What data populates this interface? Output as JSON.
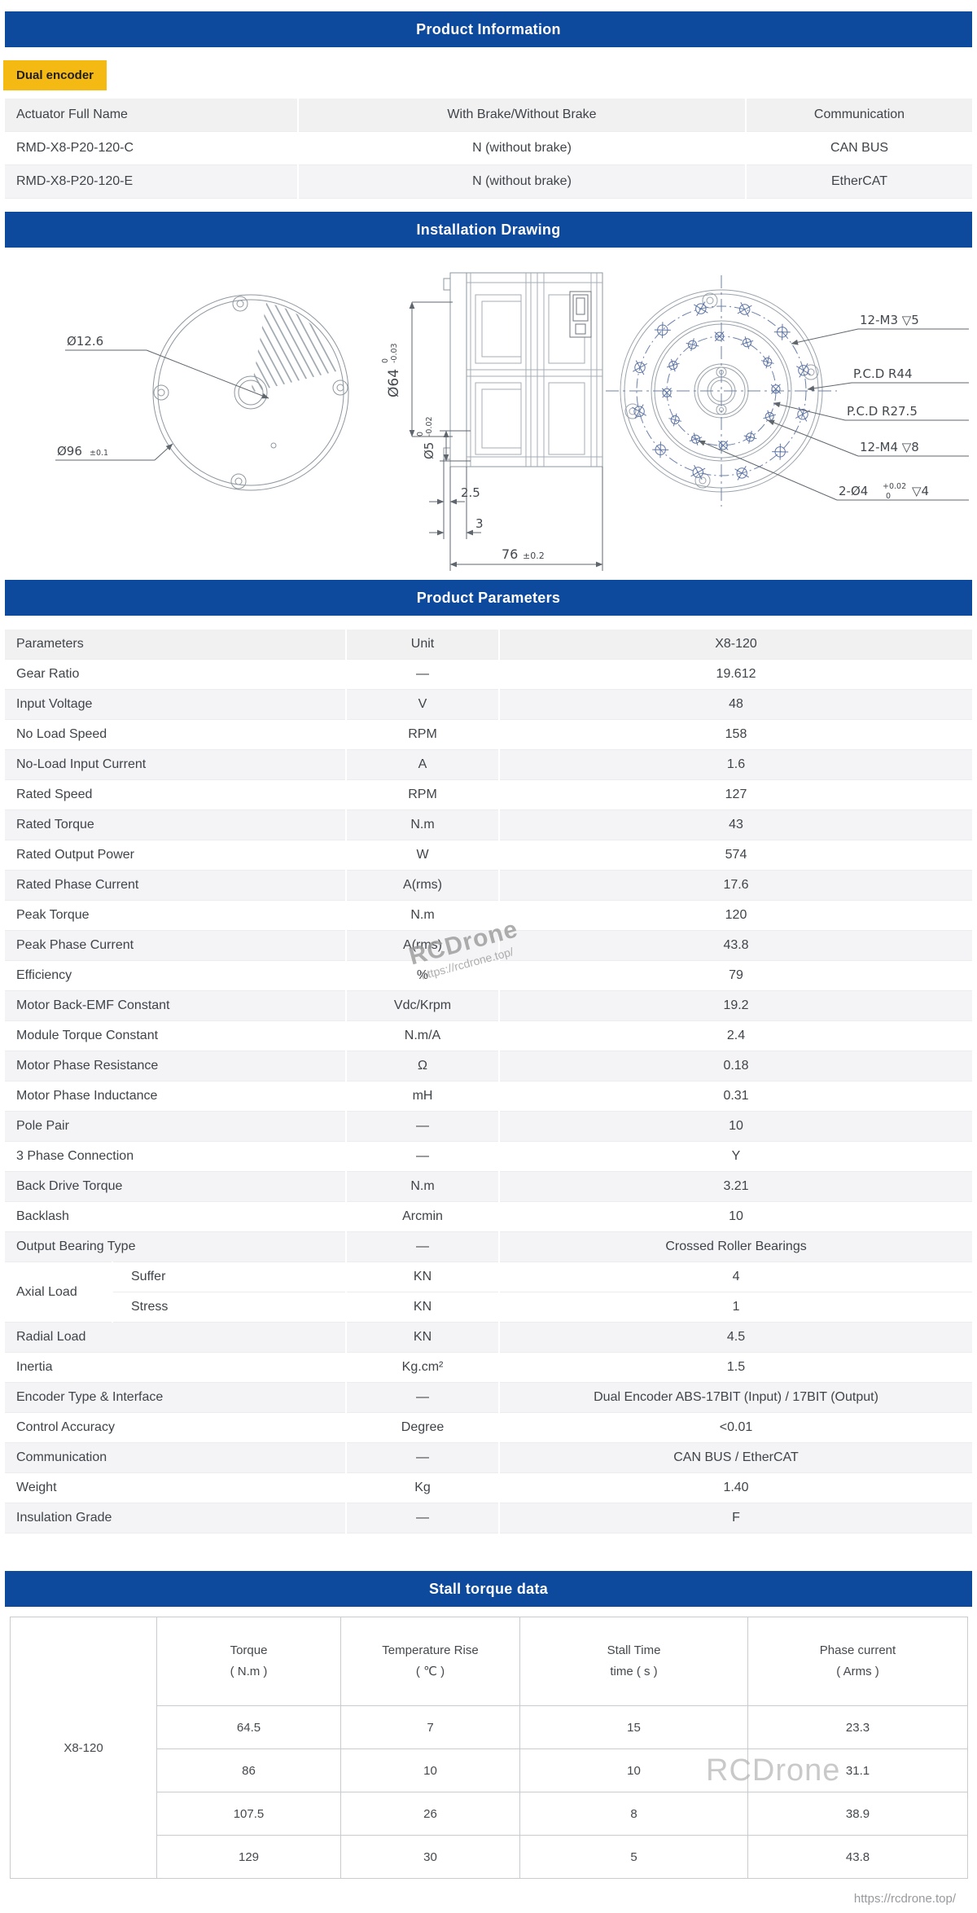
{
  "page": {
    "footer_url": "https://rcdrone.top/"
  },
  "watermark": {
    "name": "RCDrone",
    "url": "https://rcdrone.top/"
  },
  "product_info": {
    "title": "Product Information",
    "badge": "Dual encoder",
    "headers": [
      "Actuator Full Name",
      "With Brake/Without Brake",
      "Communication"
    ],
    "rows": [
      [
        "RMD-X8-P20-120-C",
        "N (without brake)",
        "CAN BUS"
      ],
      [
        "RMD-X8-P20-120-E",
        "N (without brake)",
        "EtherCAT"
      ]
    ]
  },
  "installation": {
    "title": "Installation Drawing",
    "labels": {
      "hub_dia": "Ø12.6",
      "outer_dia": "Ø96",
      "outer_tol": "±0.1",
      "dia64": "Ø64",
      "dia64_tol_hi": "0",
      "dia64_tol_lo": "-0.03",
      "dia5": "Ø5",
      "dia5_tol_hi": "0",
      "dia5_tol_lo": "-0.02",
      "dim_flange": "2.5",
      "dim_face": "3",
      "dim_length": "76",
      "dim_length_tol": "±0.2",
      "bolts_outer": "12-M3 ▽5",
      "pcd_outer": "P.C.D R44",
      "pcd_inner": "P.C.D R27.5",
      "bolts_inner": "12-M4 ▽8",
      "pins": "2-Ø4",
      "pins_tol_hi": "+0.02",
      "pins_tol_lo": "0",
      "pins_depth": "▽4"
    }
  },
  "parameters": {
    "title": "Product Parameters",
    "headers": [
      "Parameters",
      "Unit",
      "X8-120"
    ],
    "rows": [
      [
        "Gear Ratio",
        "—",
        "19.612"
      ],
      [
        "Input Voltage",
        "V",
        "48"
      ],
      [
        "No Load Speed",
        "RPM",
        "158"
      ],
      [
        "No-Load Input Current",
        "A",
        "1.6"
      ],
      [
        "Rated Speed",
        "RPM",
        "127"
      ],
      [
        "Rated Torque",
        "N.m",
        "43"
      ],
      [
        "Rated Output Power",
        "W",
        "574"
      ],
      [
        "Rated Phase Current",
        "A(rms)",
        "17.6"
      ],
      [
        "Peak Torque",
        "N.m",
        "120"
      ],
      [
        "Peak Phase Current",
        "A(rms)",
        "43.8"
      ],
      [
        "Efficiency",
        "%",
        "79"
      ],
      [
        "Motor Back-EMF Constant",
        "Vdc/Krpm",
        "19.2"
      ],
      [
        "Module Torque Constant",
        "N.m/A",
        "2.4"
      ],
      [
        "Motor Phase Resistance",
        "Ω",
        "0.18"
      ],
      [
        "Motor Phase Inductance",
        "mH",
        "0.31"
      ],
      [
        "Pole Pair",
        "—",
        "10"
      ],
      [
        "3 Phase Connection",
        "—",
        "Y"
      ],
      [
        "Back Drive Torque",
        "N.m",
        "3.21"
      ],
      [
        "Backlash",
        "Arcmin",
        "10"
      ],
      [
        "Output Bearing Type",
        "—",
        "Crossed Roller Bearings"
      ],
      {
        "group": "Axial Load",
        "subs": [
          [
            "Suffer",
            "KN",
            "4"
          ],
          [
            "Stress",
            "KN",
            "1"
          ]
        ]
      },
      [
        "Radial Load",
        "KN",
        "4.5"
      ],
      [
        "Inertia",
        "Kg.cm²",
        "1.5"
      ],
      [
        "Encoder Type & Interface",
        "—",
        "Dual Encoder ABS-17BIT (Input) / 17BIT (Output)"
      ],
      [
        "Control Accuracy",
        "Degree",
        "<0.01"
      ],
      [
        "Communication",
        "—",
        "CAN BUS / EtherCAT"
      ],
      [
        "Weight",
        "Kg",
        "1.40"
      ],
      [
        "Insulation Grade",
        "—",
        "F"
      ]
    ]
  },
  "stall": {
    "title": "Stall torque data",
    "row_label": "X8-120",
    "headers": [
      [
        "Torque",
        "( N.m )"
      ],
      [
        "Temperature Rise",
        "( ℃ )"
      ],
      [
        "Stall Time",
        "time ( s )"
      ],
      [
        "Phase current",
        "( Arms )"
      ]
    ],
    "rows": [
      [
        "64.5",
        "7",
        "15",
        "23.3"
      ],
      [
        "86",
        "10",
        "10",
        "31.1"
      ],
      [
        "107.5",
        "26",
        "8",
        "38.9"
      ],
      [
        "129",
        "30",
        "5",
        "43.8"
      ]
    ]
  }
}
